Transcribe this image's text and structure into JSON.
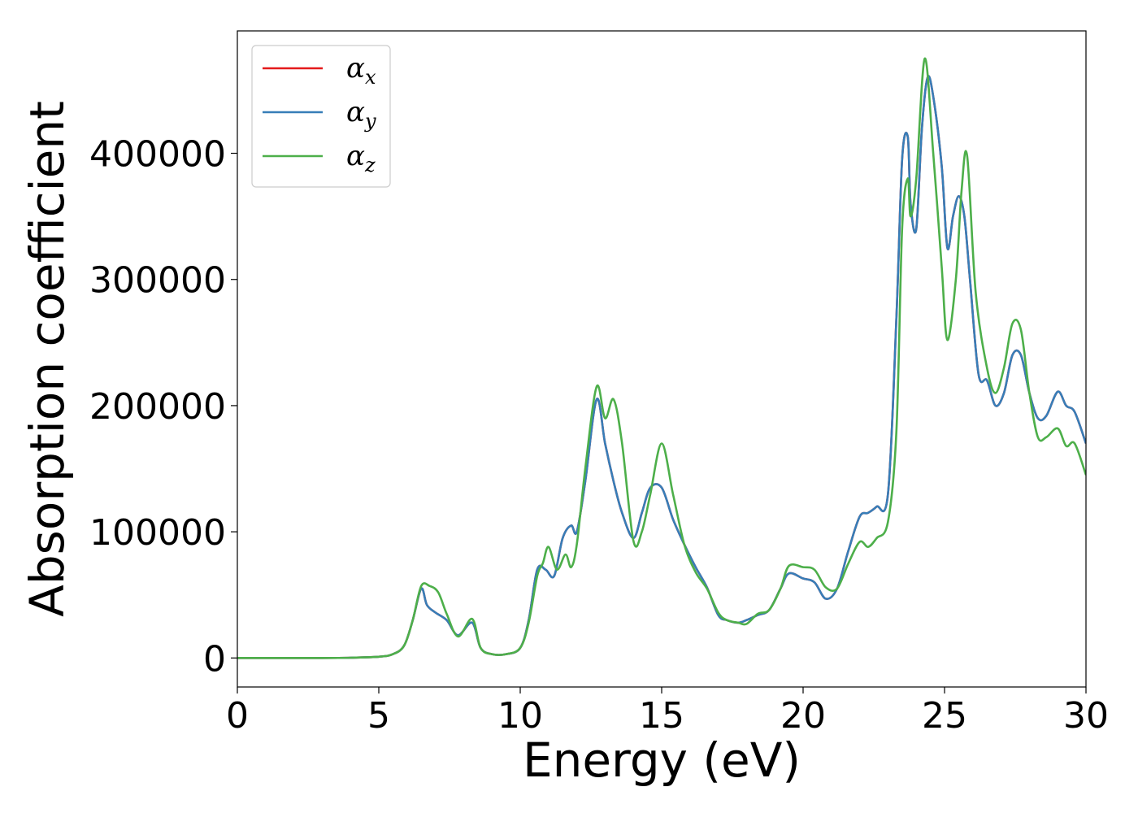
{
  "chart_data": {
    "type": "line",
    "title": "",
    "xlabel": "Energy (eV)",
    "ylabel": "Absorption coefficient",
    "xlim": [
      0,
      30
    ],
    "ylim": [
      -23000,
      497000
    ],
    "xticks": [
      0,
      5,
      10,
      15,
      20,
      25,
      30
    ],
    "xtick_labels": [
      "0",
      "5",
      "10",
      "15",
      "20",
      "25",
      "30"
    ],
    "yticks": [
      0,
      100000,
      200000,
      300000,
      400000
    ],
    "ytick_labels": [
      "0",
      "100000",
      "200000",
      "300000",
      "400000"
    ],
    "grid": false,
    "legend_position": "top-left",
    "series": [
      {
        "name": "α_x",
        "symbol": "α",
        "subscript": "x",
        "color": "#e41a1c",
        "x": [
          0,
          1,
          2,
          3,
          4,
          5,
          5.5,
          5.9,
          6.2,
          6.5,
          6.7,
          7.0,
          7.4,
          7.8,
          8.3,
          8.6,
          9.0,
          9.5,
          10.0,
          10.3,
          10.6,
          10.9,
          11.2,
          11.5,
          11.8,
          12.0,
          12.3,
          12.7,
          13.0,
          13.3,
          13.6,
          14.0,
          14.3,
          14.6,
          15.0,
          15.4,
          15.8,
          16.2,
          16.6,
          17.0,
          17.3,
          17.7,
          18.0,
          18.4,
          18.8,
          19.2,
          19.5,
          20.0,
          20.4,
          20.8,
          21.2,
          21.6,
          22.0,
          22.3,
          22.6,
          23.0,
          23.3,
          23.5,
          23.7,
          23.8,
          24.0,
          24.2,
          24.4,
          24.6,
          24.9,
          25.1,
          25.3,
          25.5,
          25.7,
          25.9,
          26.2,
          26.5,
          26.8,
          27.1,
          27.4,
          27.7,
          28.0,
          28.3,
          28.6,
          29.0,
          29.3,
          29.6,
          30.0
        ],
        "values": [
          0,
          0,
          0,
          0,
          200,
          1000,
          3000,
          10000,
          30000,
          55000,
          42000,
          36000,
          30000,
          18000,
          28000,
          8000,
          3000,
          3000,
          8000,
          30000,
          70000,
          70000,
          65000,
          95000,
          105000,
          100000,
          140000,
          205000,
          170000,
          140000,
          115000,
          95000,
          115000,
          135000,
          135000,
          110000,
          90000,
          72000,
          56000,
          34000,
          30000,
          28000,
          30000,
          34000,
          38000,
          55000,
          67000,
          63000,
          60000,
          47000,
          55000,
          85000,
          112000,
          115000,
          120000,
          130000,
          270000,
          395000,
          413000,
          360000,
          340000,
          420000,
          460000,
          445000,
          390000,
          325000,
          350000,
          366000,
          350000,
          300000,
          225000,
          220000,
          200000,
          210000,
          240000,
          240000,
          210000,
          190000,
          192000,
          211000,
          200000,
          195000,
          170000
        ]
      },
      {
        "name": "α_y",
        "symbol": "α",
        "subscript": "y",
        "color": "#377eb8",
        "x": [
          0,
          1,
          2,
          3,
          4,
          5,
          5.5,
          5.9,
          6.2,
          6.5,
          6.7,
          7.0,
          7.4,
          7.8,
          8.3,
          8.6,
          9.0,
          9.5,
          10.0,
          10.3,
          10.6,
          10.9,
          11.2,
          11.5,
          11.8,
          12.0,
          12.3,
          12.7,
          13.0,
          13.3,
          13.6,
          14.0,
          14.3,
          14.6,
          15.0,
          15.4,
          15.8,
          16.2,
          16.6,
          17.0,
          17.3,
          17.7,
          18.0,
          18.4,
          18.8,
          19.2,
          19.5,
          20.0,
          20.4,
          20.8,
          21.2,
          21.6,
          22.0,
          22.3,
          22.6,
          23.0,
          23.3,
          23.5,
          23.7,
          23.8,
          24.0,
          24.2,
          24.4,
          24.6,
          24.9,
          25.1,
          25.3,
          25.5,
          25.7,
          25.9,
          26.2,
          26.5,
          26.8,
          27.1,
          27.4,
          27.7,
          28.0,
          28.3,
          28.6,
          29.0,
          29.3,
          29.6,
          30.0
        ],
        "values": [
          0,
          0,
          0,
          0,
          200,
          1000,
          3000,
          10000,
          30000,
          55000,
          42000,
          36000,
          30000,
          18000,
          28000,
          8000,
          3000,
          3000,
          8000,
          30000,
          70000,
          70000,
          65000,
          95000,
          105000,
          100000,
          140000,
          205000,
          170000,
          140000,
          115000,
          95000,
          115000,
          135000,
          135000,
          110000,
          90000,
          72000,
          56000,
          34000,
          30000,
          28000,
          30000,
          34000,
          38000,
          55000,
          67000,
          63000,
          60000,
          47000,
          55000,
          85000,
          112000,
          115000,
          120000,
          130000,
          270000,
          395000,
          413000,
          360000,
          340000,
          420000,
          460000,
          445000,
          390000,
          325000,
          350000,
          366000,
          350000,
          300000,
          225000,
          220000,
          200000,
          210000,
          240000,
          240000,
          210000,
          190000,
          192000,
          211000,
          200000,
          195000,
          170000
        ]
      },
      {
        "name": "α_z",
        "symbol": "α",
        "subscript": "z",
        "color": "#4daf4a",
        "x": [
          0,
          1,
          2,
          3,
          4,
          5,
          5.5,
          5.9,
          6.2,
          6.5,
          6.8,
          7.1,
          7.4,
          7.8,
          8.3,
          8.6,
          9.0,
          9.5,
          10.0,
          10.3,
          10.6,
          10.8,
          11.0,
          11.3,
          11.6,
          11.8,
          12.0,
          12.3,
          12.7,
          13.0,
          13.3,
          13.6,
          14.0,
          14.3,
          14.6,
          15.0,
          15.4,
          15.8,
          16.2,
          16.6,
          17.0,
          17.3,
          17.7,
          18.0,
          18.4,
          18.8,
          19.2,
          19.5,
          20.0,
          20.4,
          20.8,
          21.2,
          21.6,
          22.0,
          22.3,
          22.6,
          23.0,
          23.3,
          23.5,
          23.7,
          23.8,
          24.0,
          24.3,
          24.6,
          24.9,
          25.1,
          25.4,
          25.6,
          25.8,
          26.1,
          26.5,
          26.8,
          27.1,
          27.4,
          27.7,
          28.0,
          28.3,
          28.6,
          29.0,
          29.3,
          29.6,
          30.0
        ],
        "values": [
          0,
          0,
          0,
          0,
          200,
          1000,
          3000,
          10000,
          30000,
          57000,
          57000,
          52000,
          35000,
          17000,
          31000,
          8000,
          3000,
          3000,
          8000,
          28000,
          65000,
          75000,
          88000,
          70000,
          82000,
          72000,
          90000,
          150000,
          215000,
          190000,
          205000,
          170000,
          93000,
          100000,
          130000,
          170000,
          130000,
          90000,
          68000,
          55000,
          36000,
          30000,
          28000,
          27000,
          35000,
          38000,
          55000,
          73000,
          72000,
          70000,
          56000,
          55000,
          75000,
          92000,
          88000,
          95000,
          108000,
          180000,
          340000,
          380000,
          350000,
          380000,
          475000,
          400000,
          310000,
          252000,
          300000,
          370000,
          398000,
          290000,
          230000,
          210000,
          230000,
          265000,
          260000,
          210000,
          175000,
          175000,
          182000,
          168000,
          170000,
          145000
        ]
      }
    ]
  }
}
